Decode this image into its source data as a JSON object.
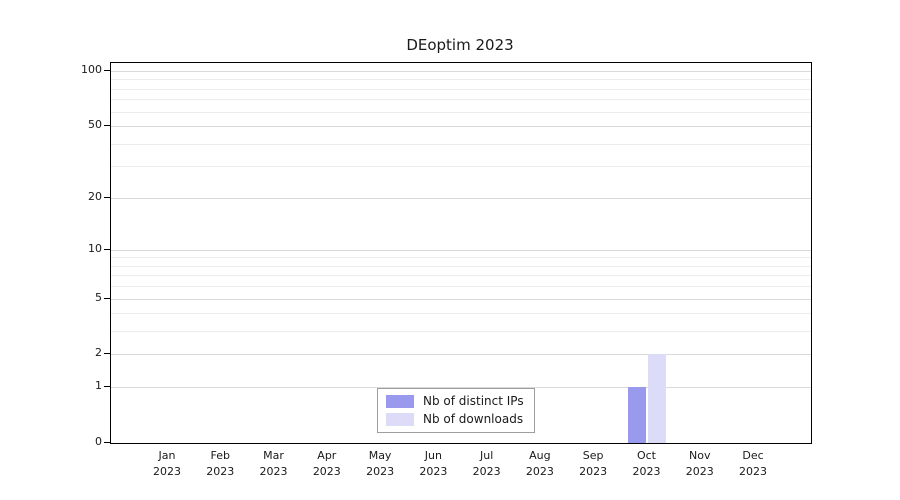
{
  "title": "DEoptim 2023",
  "chart_data": {
    "type": "bar",
    "title": "DEoptim 2023",
    "categories": [
      "Jan 2023",
      "Feb 2023",
      "Mar 2023",
      "Apr 2023",
      "May 2023",
      "Jun 2023",
      "Jul 2023",
      "Aug 2023",
      "Sep 2023",
      "Oct 2023",
      "Nov 2023",
      "Dec 2023"
    ],
    "series": [
      {
        "name": "Nb of distinct IPs",
        "color": "#9999ee",
        "values": [
          0,
          0,
          0,
          0,
          0,
          0,
          0,
          0,
          0,
          1,
          0,
          0
        ]
      },
      {
        "name": "Nb of downloads",
        "color": "#dcdcf8",
        "values": [
          0,
          0,
          0,
          0,
          0,
          0,
          0,
          0,
          0,
          2,
          0,
          0
        ]
      }
    ],
    "y_ticks": [
      0,
      1,
      2,
      5,
      10,
      20,
      50,
      100
    ],
    "y_scale": "log1p",
    "ylim": [
      0,
      110
    ],
    "grid": true,
    "legend_position": "bottom-center"
  }
}
